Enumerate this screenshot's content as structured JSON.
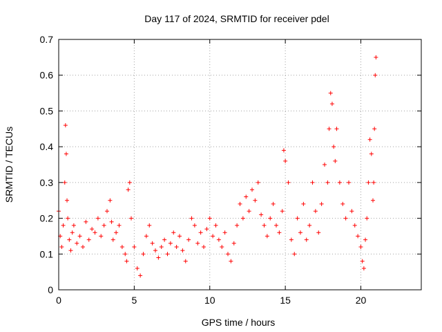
{
  "chart_data": {
    "type": "scatter",
    "title": "Day 117 of 2024, SRMTID for receiver pdel",
    "xlabel": "GPS time / hours",
    "ylabel": "SRMTID / TECUs",
    "xlim": [
      0,
      24
    ],
    "ylim": [
      0,
      0.7
    ],
    "xticks": [
      0,
      5,
      10,
      15,
      20
    ],
    "yticks": [
      0,
      0.1,
      0.2,
      0.3,
      0.4,
      0.5,
      0.6,
      0.7
    ],
    "xtick_labels": [
      "0",
      "5",
      "10",
      "15",
      "20"
    ],
    "ytick_labels": [
      "0",
      "0.1",
      "0.2",
      "0.3",
      "0.4",
      "0.5",
      "0.6",
      "0.7"
    ],
    "grid": true,
    "marker": "+",
    "color": "#ff0000",
    "series": [
      {
        "name": "SRMTID",
        "x": [
          0.0,
          0.1,
          0.2,
          0.3,
          0.4,
          0.45,
          0.5,
          0.55,
          0.6,
          0.7,
          0.8,
          0.9,
          1.0,
          1.2,
          1.4,
          1.6,
          1.8,
          2.0,
          2.2,
          2.4,
          2.6,
          2.8,
          3.0,
          3.2,
          3.4,
          3.5,
          3.6,
          3.8,
          4.0,
          4.2,
          4.4,
          4.5,
          4.6,
          4.7,
          4.8,
          5.0,
          5.2,
          5.4,
          5.6,
          5.8,
          6.0,
          6.2,
          6.4,
          6.6,
          6.8,
          7.0,
          7.2,
          7.4,
          7.6,
          7.8,
          8.0,
          8.2,
          8.4,
          8.6,
          8.8,
          9.0,
          9.2,
          9.4,
          9.6,
          9.8,
          10.0,
          10.2,
          10.4,
          10.6,
          10.8,
          11.0,
          11.2,
          11.4,
          11.6,
          11.8,
          12.0,
          12.2,
          12.4,
          12.6,
          12.8,
          13.0,
          13.2,
          13.4,
          13.6,
          13.8,
          14.0,
          14.2,
          14.4,
          14.6,
          14.8,
          14.9,
          15.0,
          15.2,
          15.4,
          15.6,
          15.8,
          16.0,
          16.2,
          16.4,
          16.6,
          16.8,
          17.0,
          17.2,
          17.4,
          17.6,
          17.8,
          17.9,
          18.0,
          18.1,
          18.2,
          18.3,
          18.4,
          18.6,
          18.8,
          19.0,
          19.2,
          19.4,
          19.6,
          19.8,
          20.0,
          20.1,
          20.2,
          20.3,
          20.4,
          20.5,
          20.6,
          20.7,
          20.8,
          20.85,
          20.9,
          20.95,
          21.0
        ],
        "y": [
          0.22,
          0.15,
          0.12,
          0.18,
          0.3,
          0.46,
          0.38,
          0.25,
          0.2,
          0.14,
          0.11,
          0.16,
          0.18,
          0.13,
          0.15,
          0.12,
          0.19,
          0.14,
          0.17,
          0.16,
          0.2,
          0.15,
          0.18,
          0.22,
          0.25,
          0.19,
          0.14,
          0.16,
          0.18,
          0.12,
          0.1,
          0.08,
          0.28,
          0.3,
          0.2,
          0.12,
          0.06,
          0.04,
          0.1,
          0.15,
          0.18,
          0.13,
          0.11,
          0.09,
          0.12,
          0.14,
          0.1,
          0.13,
          0.16,
          0.12,
          0.15,
          0.11,
          0.08,
          0.14,
          0.2,
          0.18,
          0.13,
          0.16,
          0.12,
          0.17,
          0.2,
          0.15,
          0.18,
          0.14,
          0.12,
          0.16,
          0.1,
          0.08,
          0.13,
          0.18,
          0.24,
          0.2,
          0.26,
          0.22,
          0.28,
          0.25,
          0.3,
          0.21,
          0.18,
          0.15,
          0.2,
          0.24,
          0.18,
          0.16,
          0.22,
          0.39,
          0.36,
          0.3,
          0.14,
          0.1,
          0.2,
          0.16,
          0.24,
          0.14,
          0.18,
          0.3,
          0.22,
          0.16,
          0.24,
          0.35,
          0.3,
          0.45,
          0.55,
          0.52,
          0.4,
          0.36,
          0.45,
          0.3,
          0.24,
          0.2,
          0.3,
          0.22,
          0.18,
          0.15,
          0.12,
          0.08,
          0.06,
          0.14,
          0.2,
          0.3,
          0.42,
          0.38,
          0.25,
          0.3,
          0.45,
          0.6,
          0.65
        ]
      }
    ]
  }
}
